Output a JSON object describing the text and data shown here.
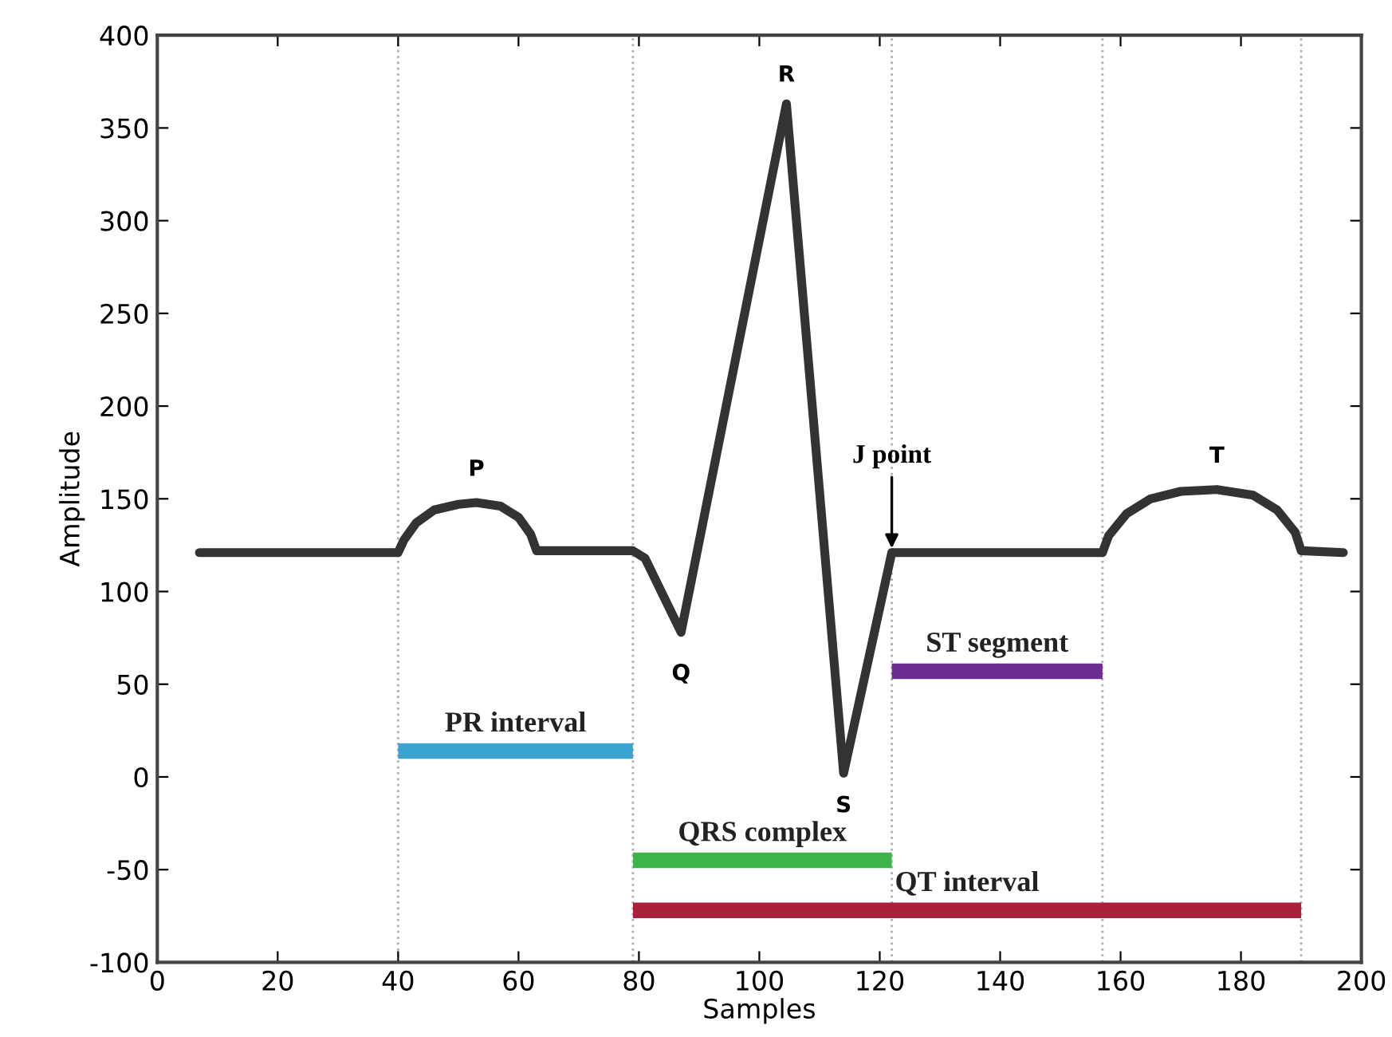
{
  "chart_data": {
    "type": "line",
    "xlabel": "Samples",
    "ylabel": "Amplitude",
    "xlim": [
      0,
      200
    ],
    "ylim": [
      -100,
      400
    ],
    "xticks": [
      0,
      20,
      40,
      60,
      80,
      100,
      120,
      140,
      160,
      180,
      200
    ],
    "yticks": [
      -100,
      -50,
      0,
      50,
      100,
      150,
      200,
      250,
      300,
      350,
      400
    ],
    "grid": false,
    "legend": false,
    "marker": "none",
    "line_style": "solid",
    "series": [
      {
        "color": "#333333",
        "x": [
          7,
          40,
          41,
          43,
          46,
          50,
          53,
          57,
          60,
          62,
          63,
          79,
          81,
          87,
          104.5,
          114,
          122,
          157,
          158,
          161,
          165,
          170,
          176,
          182,
          186,
          189,
          190,
          197
        ],
        "values": [
          121,
          121,
          128,
          137,
          144,
          147,
          148,
          146,
          140,
          131,
          122,
          122,
          118,
          78,
          363,
          2,
          121,
          121,
          130,
          142,
          150,
          154,
          155,
          152,
          144,
          132,
          122,
          121
        ]
      },
      {
        "name": "PR interval",
        "color": "#3ba3d0",
        "x": [
          40,
          79
        ],
        "values": [
          14,
          14
        ]
      },
      {
        "name": "ST segment",
        "color": "#6a2c91",
        "x": [
          122,
          157
        ],
        "values": [
          57,
          57
        ]
      },
      {
        "name": "QRS complex",
        "color": "#3cb44a",
        "x": [
          79,
          122
        ],
        "values": [
          -45,
          -45
        ]
      },
      {
        "name": "QT interval",
        "color": "#a8203a",
        "x": [
          79,
          190
        ],
        "values": [
          -72,
          -72
        ]
      }
    ],
    "ref_lines": [
      {
        "axis": "x",
        "value": 40,
        "color": "#b0b0b0",
        "line_style": "dotted"
      },
      {
        "axis": "x",
        "value": 79,
        "color": "#b0b0b0",
        "line_style": "dotted"
      },
      {
        "axis": "x",
        "value": 122,
        "color": "#b0b0b0",
        "line_style": "dotted"
      },
      {
        "axis": "x",
        "value": 157,
        "color": "#b0b0b0",
        "line_style": "dotted"
      },
      {
        "axis": "x",
        "value": 190,
        "color": "#b0b0b0",
        "line_style": "dotted"
      }
    ],
    "annotations": [
      {
        "text": "P",
        "x": 53,
        "y": 148
      },
      {
        "text": "Q",
        "x": 87,
        "y": 78
      },
      {
        "text": "R",
        "x": 104.5,
        "y": 363
      },
      {
        "text": "S",
        "x": 114,
        "y": 2
      },
      {
        "text": "T",
        "x": 176,
        "y": 155
      },
      {
        "text": "J point",
        "x": 122,
        "y": 121
      }
    ]
  }
}
